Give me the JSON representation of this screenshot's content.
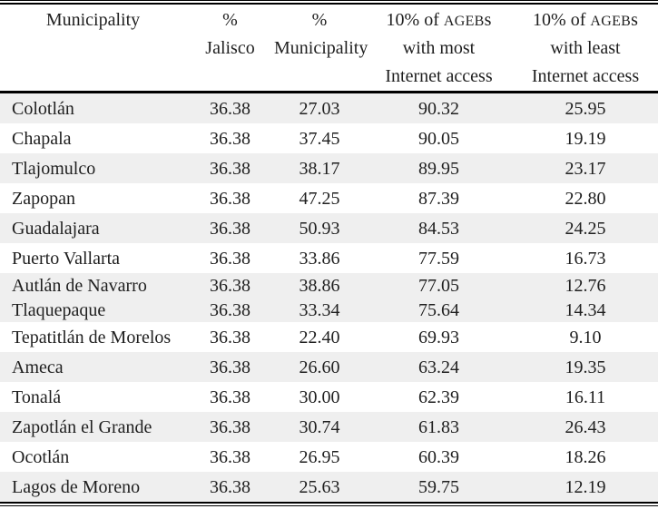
{
  "colors": {
    "stripe": "#efefef",
    "text": "#1f1f1f",
    "rule": "#000000",
    "background": "#ffffff"
  },
  "header": {
    "col1": {
      "line1": "Municipality"
    },
    "col2": {
      "line1": "%",
      "line2": "Jalisco"
    },
    "col3": {
      "line1": "%",
      "line2": "Municipality"
    },
    "col4": {
      "line1_prefix": "10% of ",
      "line1_acronym": "AGEB",
      "line1_suffix": "s",
      "line2": "with most",
      "line3": "Internet access"
    },
    "col5": {
      "line1_prefix": "10% of ",
      "line1_acronym": "AGEB",
      "line1_suffix": "s",
      "line2": "with least",
      "line3": "Internet access"
    }
  },
  "table": {
    "shaded_rows": [
      1,
      3,
      5,
      7,
      8,
      10,
      12,
      14
    ],
    "tight_rows": [
      7,
      8
    ]
  },
  "chart_data": {
    "type": "table",
    "columns": [
      "Municipality",
      "% Jalisco",
      "% Municipality",
      "10% of AGEBs with most Internet access",
      "10% of AGEBs with least Internet access"
    ],
    "rows": [
      [
        "Colotlán",
        "36.38",
        "27.03",
        "90.32",
        "25.95"
      ],
      [
        "Chapala",
        "36.38",
        "37.45",
        "90.05",
        "19.19"
      ],
      [
        "Tlajomulco",
        "36.38",
        "38.17",
        "89.95",
        "23.17"
      ],
      [
        "Zapopan",
        "36.38",
        "47.25",
        "87.39",
        "22.80"
      ],
      [
        "Guadalajara",
        "36.38",
        "50.93",
        "84.53",
        "24.25"
      ],
      [
        "Puerto Vallarta",
        "36.38",
        "33.86",
        "77.59",
        "16.73"
      ],
      [
        "Autlán de Navarro",
        "36.38",
        "38.86",
        "77.05",
        "12.76"
      ],
      [
        "Tlaquepaque",
        "36.38",
        "33.34",
        "75.64",
        "14.34"
      ],
      [
        "Tepatitlán de Morelos",
        "36.38",
        "22.40",
        "69.93",
        "9.10"
      ],
      [
        "Ameca",
        "36.38",
        "26.60",
        "63.24",
        "19.35"
      ],
      [
        "Tonalá",
        "36.38",
        "30.00",
        "62.39",
        "16.11"
      ],
      [
        "Zapotlán el Grande",
        "36.38",
        "30.74",
        "61.83",
        "26.43"
      ],
      [
        "Ocotlán",
        "36.38",
        "26.95",
        "60.39",
        "18.26"
      ],
      [
        "Lagos de Moreno",
        "36.38",
        "25.63",
        "59.75",
        "12.19"
      ]
    ]
  }
}
